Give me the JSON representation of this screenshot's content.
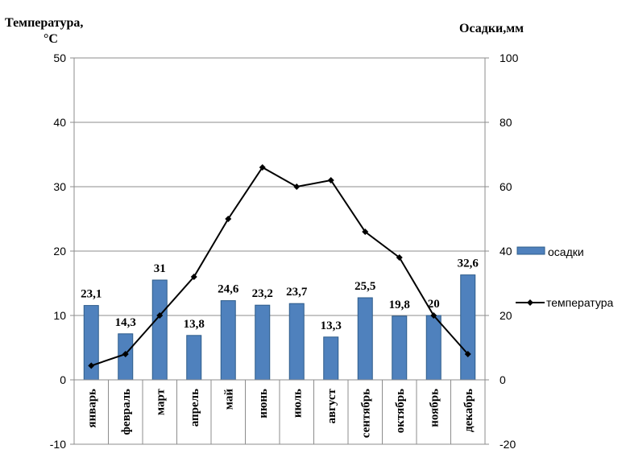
{
  "chart_data": {
    "type": "bar+line",
    "categories": [
      "январь",
      "февраль",
      "март",
      "апрель",
      "май",
      "июнь",
      "июль",
      "август",
      "сентябрь",
      "октябрь",
      "ноябрь",
      "декабрь"
    ],
    "left_axis_title_line1": "Температура,",
    "left_axis_title_line2": "°С",
    "right_axis_title": "Осадки,мм",
    "left_ylim": [
      -10,
      50
    ],
    "left_ticks": [
      "-10",
      "0",
      "10",
      "20",
      "30",
      "40",
      "50"
    ],
    "right_ylim": [
      -20,
      100
    ],
    "right_ticks": [
      "-20",
      "0",
      "20",
      "40",
      "60",
      "80",
      "100"
    ],
    "grid": true,
    "legend_position": "right",
    "series": [
      {
        "name": "осадки",
        "kind": "bar",
        "axis": "right",
        "color": "#4F81BD",
        "values": [
          23.1,
          14.3,
          31,
          13.8,
          24.6,
          23.2,
          23.7,
          13.3,
          25.5,
          19.8,
          20,
          32.6
        ],
        "labels": [
          "23,1",
          "14,3",
          "31",
          "13,8",
          "24,6",
          "23,2",
          "23,7",
          "13,3",
          "25,5",
          "19,8",
          "20",
          "32,6"
        ]
      },
      {
        "name": "температура",
        "kind": "line",
        "axis": "left",
        "color": "#000000",
        "values": [
          2.2,
          4.0,
          10.0,
          16.0,
          25.0,
          33.0,
          30.0,
          31.0,
          23.0,
          19.0,
          10.0,
          4.0
        ]
      }
    ]
  }
}
